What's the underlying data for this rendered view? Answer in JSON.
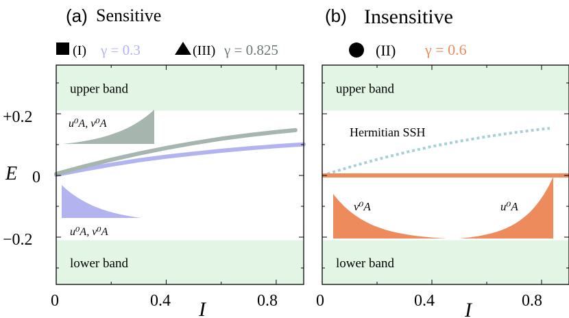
{
  "colors": {
    "band": "#e3f5e4",
    "lavender": "#b3b4ef",
    "gray_green": "#a6b5ae",
    "orange": "#ee8b5c",
    "dotted": "#a8cfd7",
    "label_gray": "#6d7873",
    "axis": "#000000"
  },
  "chart_data": [
    {
      "type": "line",
      "panel_label": "(a)",
      "title": "Sensitive",
      "legend": {
        "marker_square": "(I)",
        "gamma_1": "γ = 0.3",
        "marker_triangle": "(III)",
        "gamma_2": "γ = 0.825"
      },
      "xlabel": "I",
      "ylabel": "E",
      "xlim": [
        0,
        0.9
      ],
      "ylim": [
        -0.33,
        0.33
      ],
      "x_ticks": [
        "0",
        "0.4",
        "0.8"
      ],
      "y_ticks": [
        "+0.2",
        "0",
        "−0.2"
      ],
      "bands": {
        "upper_label": "upper band",
        "lower_label": "lower band",
        "edge": 0.21
      },
      "series": [
        {
          "name": "(I) γ = 0.3",
          "color": "lavender",
          "x": [
            0,
            0.1,
            0.2,
            0.3,
            0.4,
            0.5,
            0.6,
            0.7,
            0.8,
            0.9
          ],
          "y": [
            0.002,
            0.019,
            0.035,
            0.049,
            0.061,
            0.071,
            0.08,
            0.088,
            0.095,
            0.101
          ]
        },
        {
          "name": "(III) γ = 0.825",
          "color": "gray_green",
          "x": [
            0,
            0.1,
            0.2,
            0.3,
            0.4,
            0.5,
            0.6,
            0.7,
            0.8,
            0.87
          ],
          "y": [
            0.005,
            0.029,
            0.051,
            0.071,
            0.089,
            0.105,
            0.119,
            0.131,
            0.141,
            0.147
          ]
        }
      ],
      "insets": [
        {
          "label": "u⁰A, v⁰A",
          "profile": "growing",
          "color": "gray_green"
        },
        {
          "label": "u⁰A, v⁰A",
          "profile": "decaying",
          "color": "lavender"
        }
      ]
    },
    {
      "type": "line",
      "panel_label": "(b)",
      "title": "Insensitive",
      "legend": {
        "marker_circle": "(II)",
        "gamma_1": "γ = 0.6"
      },
      "xlabel": "I",
      "ylabel": "",
      "xlim": [
        0,
        0.9
      ],
      "ylim": [
        -0.33,
        0.33
      ],
      "x_ticks": [
        "0",
        "0.4",
        "0.8"
      ],
      "bands": {
        "upper_label": "upper band",
        "lower_label": "lower band",
        "edge": 0.21
      },
      "annotation": "Hermitian SSH",
      "series": [
        {
          "name": "Hermitian SSH",
          "style": "dotted",
          "color": "dotted",
          "x": [
            0,
            0.1,
            0.2,
            0.3,
            0.4,
            0.5,
            0.6,
            0.7,
            0.8,
            0.83
          ],
          "y": [
            0,
            0.027,
            0.052,
            0.074,
            0.094,
            0.111,
            0.126,
            0.139,
            0.15,
            0.153
          ]
        },
        {
          "name": "(II) γ = 0.6",
          "color": "orange",
          "x": [
            0,
            0.9
          ],
          "y": [
            0,
            0
          ]
        }
      ],
      "insets": [
        {
          "label": "v⁰A",
          "profile": "decaying",
          "color": "orange"
        },
        {
          "label": "u⁰A",
          "profile": "growing",
          "color": "orange"
        }
      ]
    }
  ]
}
